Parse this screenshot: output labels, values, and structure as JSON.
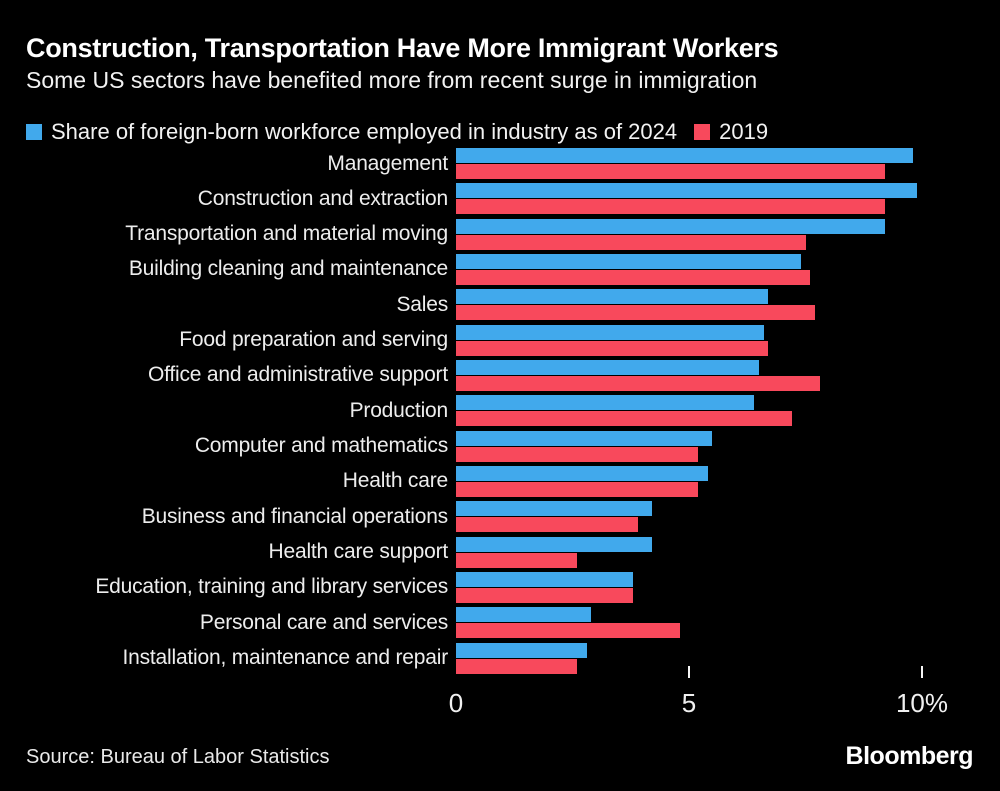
{
  "header": {
    "title": "Construction, Transportation Have More Immigrant Workers",
    "subtitle": "Some US sectors have benefited more from recent surge in immigration"
  },
  "colors": {
    "background": "#000000",
    "blue_2024": "#41a9ec",
    "red_2019": "#f8495c",
    "text": "#f2f2f2"
  },
  "chart_data": {
    "type": "bar",
    "orientation": "horizontal",
    "title": "Construction, Transportation Have More Immigrant Workers",
    "subtitle": "Some US sectors have benefited more from recent surge in immigration",
    "xlabel": "",
    "ylabel": "",
    "xlim": [
      0,
      10
    ],
    "grid": false,
    "legend_position": "top",
    "xticks": [
      {
        "value": 0,
        "label": "0"
      },
      {
        "value": 5,
        "label": "5"
      },
      {
        "value": 10,
        "label": "10%"
      }
    ],
    "categories": [
      "Management",
      "Construction and extraction",
      "Transportation and material moving",
      "Building cleaning and maintenance",
      "Sales",
      "Food preparation and serving",
      "Office and administrative support",
      "Production",
      "Computer and mathematics",
      "Health care",
      "Business and financial operations",
      "Health care support",
      "Education, training and library services",
      "Personal care and services",
      "Installation, maintenance and repair"
    ],
    "series": [
      {
        "name": "Share of foreign-born workforce employed in industry as of 2024",
        "short_name": "2024",
        "color": "#41a9ec",
        "values": [
          9.8,
          9.9,
          9.2,
          7.4,
          6.7,
          6.6,
          6.5,
          6.4,
          5.5,
          5.4,
          4.2,
          4.2,
          3.8,
          2.9,
          2.8
        ]
      },
      {
        "name": "2019",
        "short_name": "2019",
        "color": "#f8495c",
        "values": [
          9.2,
          9.2,
          7.5,
          7.6,
          7.7,
          6.7,
          7.8,
          7.2,
          5.2,
          5.2,
          3.9,
          2.6,
          3.8,
          4.8,
          2.6
        ]
      }
    ]
  },
  "footer": {
    "source": "Source: Bureau of Labor Statistics",
    "brand": "Bloomberg"
  }
}
